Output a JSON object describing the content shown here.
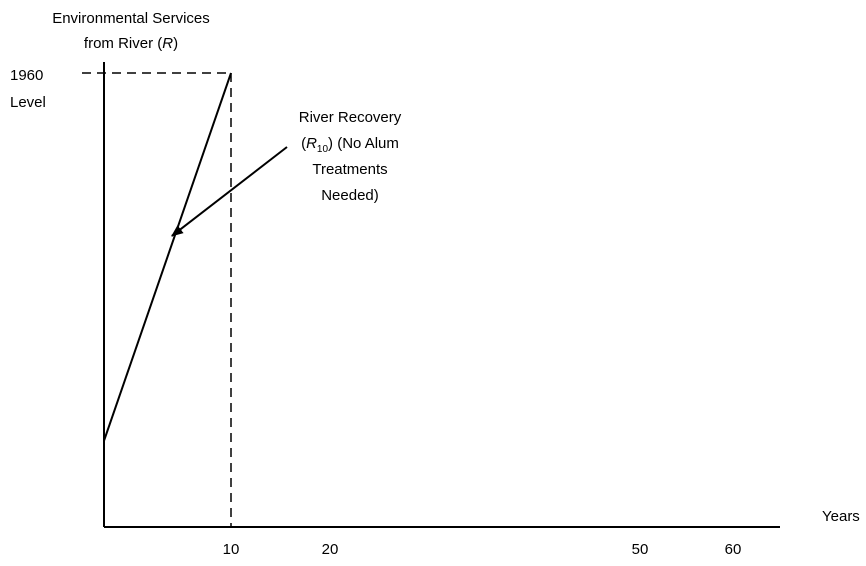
{
  "chart_data": {
    "type": "line",
    "title": "",
    "ylabel": {
      "line1": "Environmental Services",
      "line2_prefix": "from River (",
      "line2_var": "R",
      "line2_suffix": ")"
    },
    "xlabel": "Years",
    "y_reference": {
      "label_line1": "1960",
      "label_line2": "Level",
      "value": 1
    },
    "x_ticks": [
      {
        "value": 10,
        "label": "10"
      },
      {
        "value": 20,
        "label": "20"
      },
      {
        "value": 50,
        "label": "50"
      },
      {
        "value": 60,
        "label": "60"
      }
    ],
    "xlim": [
      0,
      60
    ],
    "ylim": [
      0,
      1
    ],
    "series": [
      {
        "points": [
          {
            "x": 0,
            "y": 0.19
          },
          {
            "x": 10,
            "y": 1
          }
        ],
        "color": "#000000",
        "style": "solid"
      }
    ],
    "reference_lines": [
      {
        "orientation": "horizontal",
        "y": 1,
        "x_from": 0,
        "x_to": 10,
        "style": "dashed"
      },
      {
        "orientation": "vertical",
        "x": 10,
        "y_from": 0,
        "y_to": 1,
        "style": "dashed"
      }
    ],
    "annotation": {
      "line1": "River Recovery",
      "line2_open": "(",
      "line2_var": "R",
      "line2_sub": "10",
      "line2_rest": ") (No Alum",
      "line3": "Treatments",
      "line4": "Needed)",
      "arrow_target": {
        "x": 5.5,
        "y": 0.65
      }
    },
    "grid": false,
    "legend": "none"
  }
}
